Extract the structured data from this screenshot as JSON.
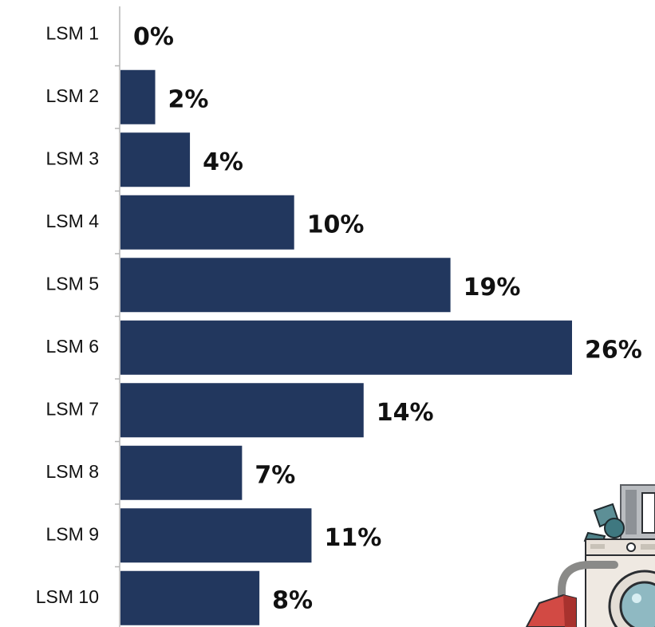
{
  "chart_data": {
    "type": "bar",
    "orientation": "horizontal",
    "categories": [
      "LSM 1",
      "LSM 2",
      "LSM 3",
      "LSM 4",
      "LSM 5",
      "LSM 6",
      "LSM 7",
      "LSM 8",
      "LSM 9",
      "LSM 10"
    ],
    "values": [
      0,
      2,
      4,
      10,
      19,
      26,
      14,
      7,
      11,
      8
    ],
    "data_labels": [
      "0%",
      "2%",
      "4%",
      "10%",
      "19%",
      "26%",
      "14%",
      "7%",
      "11%",
      "8%"
    ],
    "title": "",
    "xlabel": "",
    "ylabel": "",
    "xlim": [
      0,
      26
    ],
    "grid": false,
    "legend": "none",
    "bar_color": "#22375e"
  },
  "decoration": {
    "appliances_icon": "home-appliances-illustration"
  }
}
